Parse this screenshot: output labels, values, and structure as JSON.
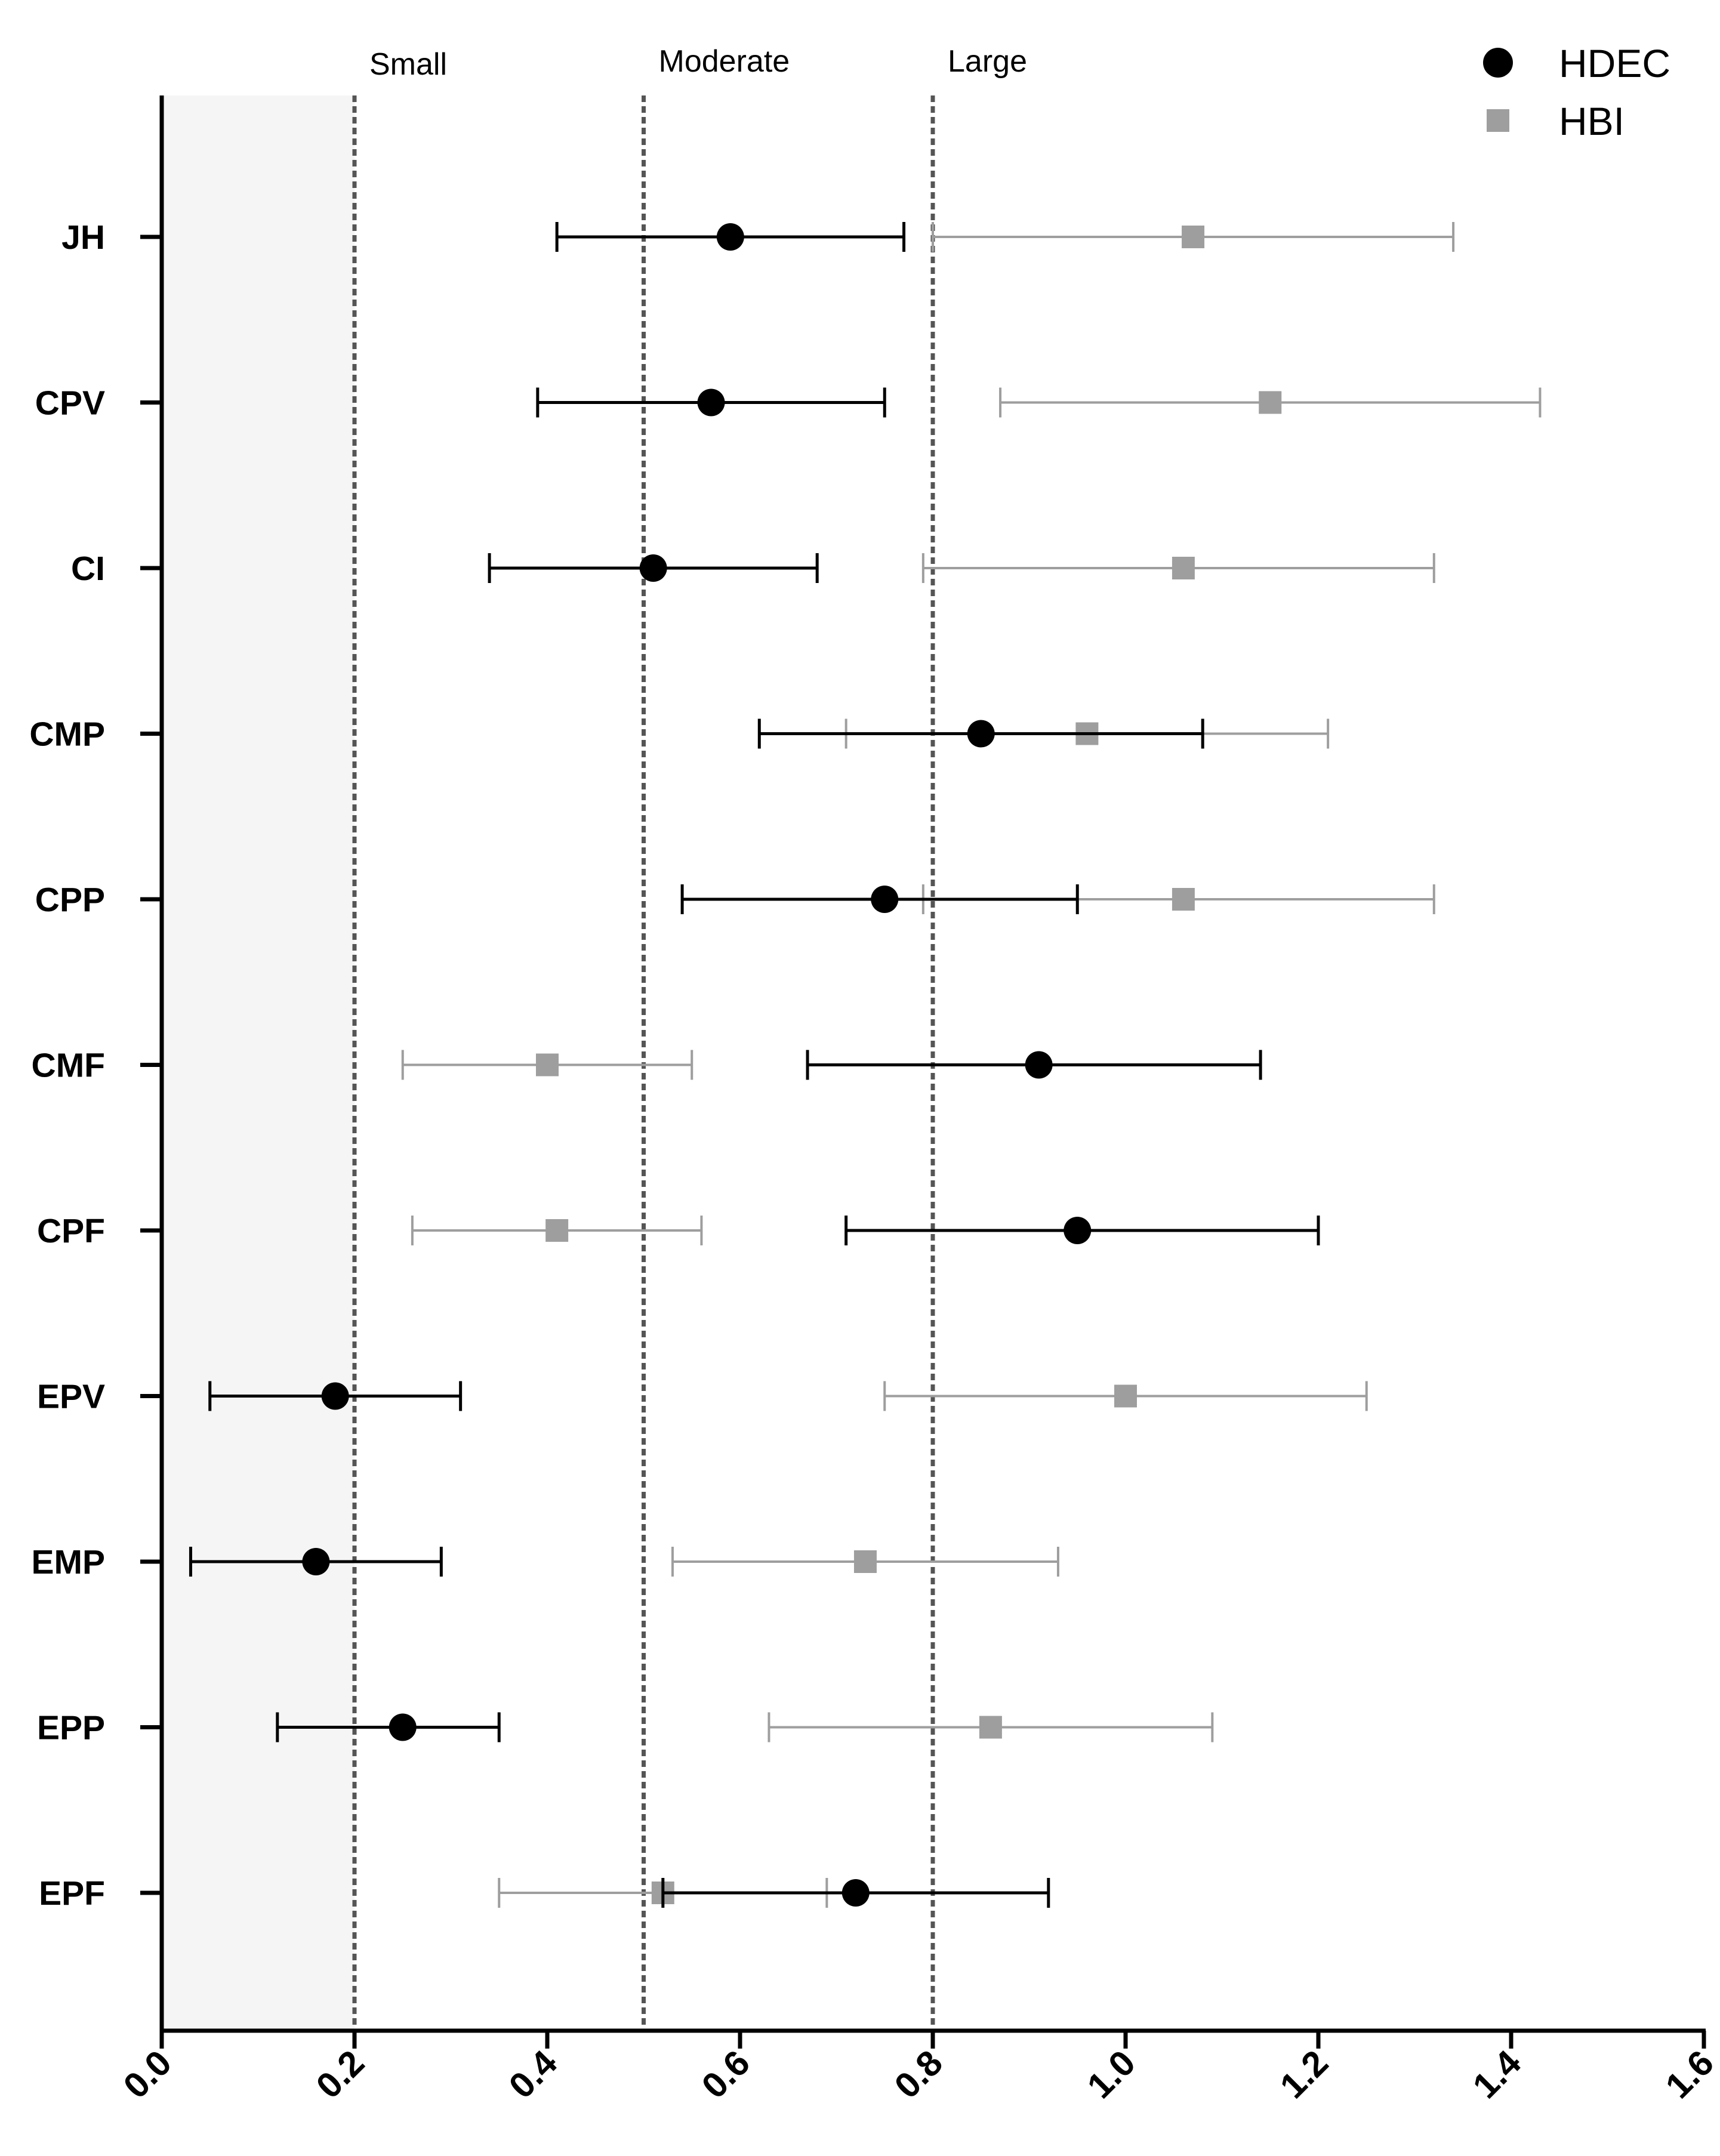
{
  "chart_data": {
    "type": "scatter",
    "subtype": "forest-plot-with-error-bars",
    "orientation": "horizontal",
    "categories": [
      "JH",
      "CPV",
      "CI",
      "CMP",
      "CPP",
      "CMF",
      "CPF",
      "EPV",
      "EMP",
      "EPP",
      "EPF"
    ],
    "xlim": [
      0.0,
      1.6
    ],
    "x_ticks": [
      "0.0",
      "0.2",
      "0.4",
      "0.6",
      "0.8",
      "1.0",
      "1.2",
      "1.4",
      "1.6"
    ],
    "x_tick_values": [
      0.0,
      0.2,
      0.4,
      0.6,
      0.8,
      1.0,
      1.2,
      1.4,
      1.6
    ],
    "shaded_region": {
      "from": 0.0,
      "to": 0.2,
      "color": "#f5f5f5"
    },
    "reference_lines": [
      {
        "label": "Small",
        "x": 0.2
      },
      {
        "label": "Moderate",
        "x": 0.5
      },
      {
        "label": "Large",
        "x": 0.8
      }
    ],
    "legend_position": "top-right",
    "series": [
      {
        "name": "HDEC",
        "marker": "circle",
        "color": "#000000",
        "values": [
          0.59,
          0.57,
          0.51,
          0.85,
          0.75,
          0.91,
          0.95,
          0.18,
          0.16,
          0.25,
          0.72
        ],
        "lower": [
          0.41,
          0.39,
          0.34,
          0.62,
          0.54,
          0.67,
          0.71,
          0.05,
          0.03,
          0.12,
          0.52
        ],
        "upper": [
          0.77,
          0.75,
          0.68,
          1.08,
          0.95,
          1.14,
          1.2,
          0.31,
          0.29,
          0.35,
          0.92
        ]
      },
      {
        "name": "HBI",
        "marker": "square",
        "color": "#9e9e9e",
        "values": [
          1.07,
          1.15,
          1.06,
          0.96,
          1.06,
          0.4,
          0.41,
          1.0,
          0.73,
          0.86,
          0.52
        ],
        "lower": [
          0.8,
          0.87,
          0.79,
          0.71,
          0.79,
          0.25,
          0.26,
          0.75,
          0.53,
          0.63,
          0.35
        ],
        "upper": [
          1.34,
          1.43,
          1.32,
          1.21,
          1.32,
          0.55,
          0.56,
          1.25,
          0.93,
          1.09,
          0.69
        ]
      }
    ]
  }
}
